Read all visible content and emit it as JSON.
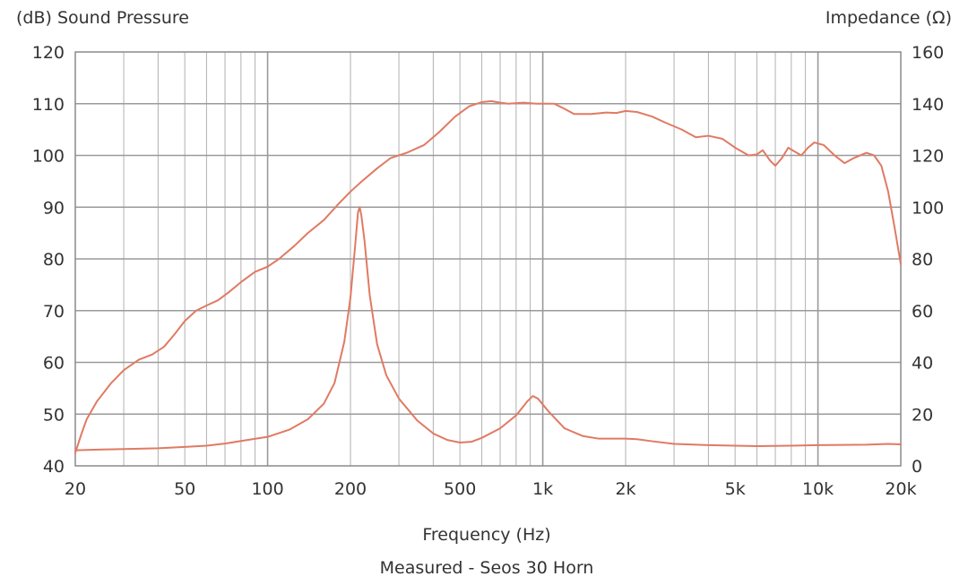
{
  "chart_data": {
    "type": "line",
    "left_axis_title": "(dB) Sound Pressure",
    "right_axis_title": "Impedance (Ω)",
    "xlabel": "Frequency (Hz)",
    "caption": "Measured - Seos 30 Horn",
    "xscale": "log",
    "xlim": [
      20,
      20000
    ],
    "ylim_left": [
      40,
      120
    ],
    "ylim_right": [
      0,
      160
    ],
    "x_ticks": [
      {
        "value": 20,
        "label": "20"
      },
      {
        "value": 50,
        "label": "50"
      },
      {
        "value": 100,
        "label": "100"
      },
      {
        "value": 200,
        "label": "200"
      },
      {
        "value": 500,
        "label": "500"
      },
      {
        "value": 1000,
        "label": "1k"
      },
      {
        "value": 2000,
        "label": "2k"
      },
      {
        "value": 5000,
        "label": "5k"
      },
      {
        "value": 10000,
        "label": "10k"
      },
      {
        "value": 20000,
        "label": "20k"
      }
    ],
    "y_ticks_left": [
      "40",
      "50",
      "60",
      "70",
      "80",
      "90",
      "100",
      "110",
      "120"
    ],
    "y_ticks_right": [
      "0",
      "20",
      "40",
      "60",
      "80",
      "100",
      "120",
      "140",
      "160"
    ],
    "grid": true,
    "line_color": "#e07a63",
    "series": [
      {
        "name": "Sound Pressure",
        "axis": "left",
        "points": [
          [
            20,
            42.5
          ],
          [
            21,
            46
          ],
          [
            22,
            49
          ],
          [
            24,
            52.5
          ],
          [
            27,
            56
          ],
          [
            30,
            58.5
          ],
          [
            34,
            60.5
          ],
          [
            38,
            61.5
          ],
          [
            42,
            63
          ],
          [
            46,
            65.5
          ],
          [
            50,
            68
          ],
          [
            55,
            70
          ],
          [
            60,
            71
          ],
          [
            66,
            72
          ],
          [
            72,
            73.5
          ],
          [
            80,
            75.5
          ],
          [
            90,
            77.5
          ],
          [
            100,
            78.5
          ],
          [
            110,
            80
          ],
          [
            125,
            82.5
          ],
          [
            140,
            85
          ],
          [
            160,
            87.5
          ],
          [
            180,
            90.5
          ],
          [
            200,
            93
          ],
          [
            220,
            95
          ],
          [
            250,
            97.5
          ],
          [
            280,
            99.5
          ],
          [
            320,
            100.5
          ],
          [
            370,
            102
          ],
          [
            420,
            104.5
          ],
          [
            480,
            107.5
          ],
          [
            540,
            109.5
          ],
          [
            600,
            110.3
          ],
          [
            650,
            110.5
          ],
          [
            700,
            110.2
          ],
          [
            750,
            110
          ],
          [
            850,
            110.2
          ],
          [
            950,
            110
          ],
          [
            1100,
            110
          ],
          [
            1200,
            109
          ],
          [
            1300,
            108
          ],
          [
            1500,
            108
          ],
          [
            1700,
            108.3
          ],
          [
            1850,
            108.2
          ],
          [
            2000,
            108.6
          ],
          [
            2200,
            108.4
          ],
          [
            2500,
            107.5
          ],
          [
            2800,
            106.3
          ],
          [
            3200,
            105
          ],
          [
            3600,
            103.5
          ],
          [
            4000,
            103.8
          ],
          [
            4500,
            103.2
          ],
          [
            5000,
            101.5
          ],
          [
            5600,
            100
          ],
          [
            6000,
            100.2
          ],
          [
            6300,
            101
          ],
          [
            6700,
            99
          ],
          [
            7000,
            98
          ],
          [
            7400,
            99.5
          ],
          [
            7800,
            101.5
          ],
          [
            8200,
            100.8
          ],
          [
            8700,
            100
          ],
          [
            9200,
            101.5
          ],
          [
            9700,
            102.5
          ],
          [
            10500,
            102
          ],
          [
            11500,
            100
          ],
          [
            12500,
            98.5
          ],
          [
            13500,
            99.5
          ],
          [
            15000,
            100.5
          ],
          [
            16000,
            100
          ],
          [
            17000,
            98
          ],
          [
            18000,
            93
          ],
          [
            19000,
            86
          ],
          [
            20000,
            79
          ]
        ]
      },
      {
        "name": "Impedance",
        "axis": "right",
        "points": [
          [
            20,
            6
          ],
          [
            25,
            6.3
          ],
          [
            30,
            6.5
          ],
          [
            40,
            6.8
          ],
          [
            50,
            7.3
          ],
          [
            60,
            7.8
          ],
          [
            70,
            8.6
          ],
          [
            80,
            9.6
          ],
          [
            100,
            11.2
          ],
          [
            120,
            14
          ],
          [
            140,
            18
          ],
          [
            160,
            24
          ],
          [
            175,
            32
          ],
          [
            190,
            48
          ],
          [
            200,
            65
          ],
          [
            208,
            85
          ],
          [
            213,
            98
          ],
          [
            216,
            100
          ],
          [
            219,
            97
          ],
          [
            225,
            87
          ],
          [
            235,
            66
          ],
          [
            250,
            47
          ],
          [
            270,
            35
          ],
          [
            300,
            26
          ],
          [
            350,
            17.5
          ],
          [
            400,
            12.5
          ],
          [
            450,
            10
          ],
          [
            500,
            9
          ],
          [
            550,
            9.3
          ],
          [
            600,
            10.8
          ],
          [
            700,
            14.5
          ],
          [
            800,
            19.5
          ],
          [
            880,
            25
          ],
          [
            920,
            27
          ],
          [
            960,
            26
          ],
          [
            1050,
            21
          ],
          [
            1200,
            14.5
          ],
          [
            1400,
            11.5
          ],
          [
            1600,
            10.5
          ],
          [
            2000,
            10.5
          ],
          [
            2200,
            10.3
          ],
          [
            2500,
            9.5
          ],
          [
            3000,
            8.5
          ],
          [
            4000,
            8
          ],
          [
            5000,
            7.8
          ],
          [
            6000,
            7.6
          ],
          [
            8000,
            7.8
          ],
          [
            10000,
            8
          ],
          [
            15000,
            8.2
          ],
          [
            18000,
            8.5
          ],
          [
            20000,
            8.3
          ]
        ]
      }
    ]
  }
}
